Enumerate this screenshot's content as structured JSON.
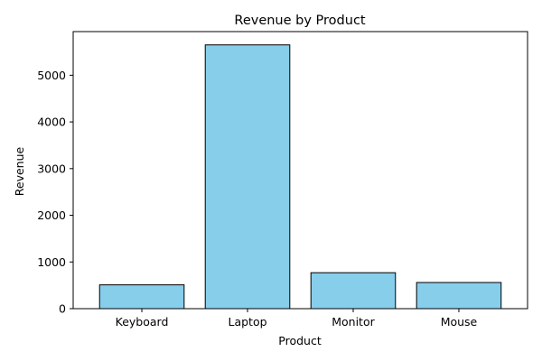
{
  "chart_data": {
    "type": "bar",
    "title": "Revenue by Product",
    "xlabel": "Product",
    "ylabel": "Revenue",
    "categories": [
      "Keyboard",
      "Laptop",
      "Monitor",
      "Mouse"
    ],
    "values": [
      510,
      5650,
      770,
      560
    ],
    "ylim": [
      0,
      5935
    ],
    "yticks": [
      0,
      1000,
      2000,
      3000,
      4000,
      5000
    ],
    "grid": false,
    "legend": "none",
    "colors": {
      "bar_fill": "#87ceeb",
      "bar_edge": "#000000",
      "axis": "#000000",
      "text": "#000000",
      "background": "#ffffff"
    }
  }
}
